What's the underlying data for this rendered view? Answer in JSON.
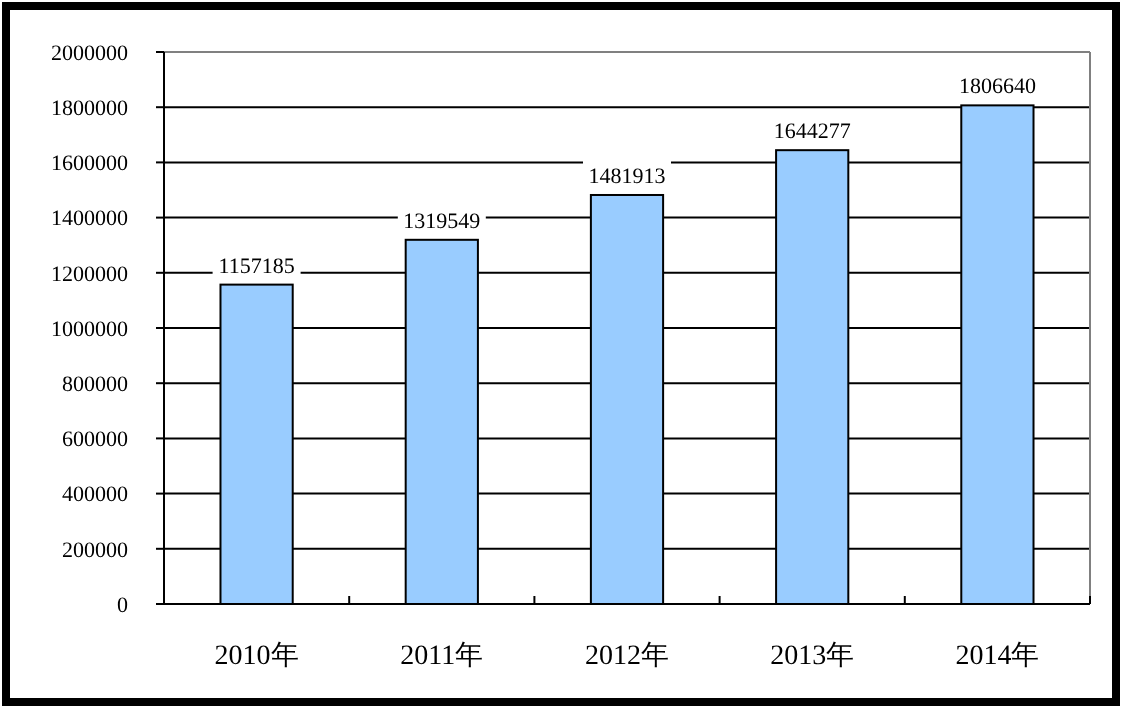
{
  "chart_data": {
    "type": "bar",
    "categories": [
      "2010年",
      "2011年",
      "2012年",
      "2013年",
      "2014年"
    ],
    "values": [
      1157185,
      1319549,
      1481913,
      1644277,
      1806640
    ],
    "color": "#99ccff",
    "ylim": [
      0,
      2000000
    ],
    "yticks": [
      0,
      200000,
      400000,
      600000,
      800000,
      1000000,
      1200000,
      1400000,
      1600000,
      1800000,
      2000000
    ],
    "grid": "y",
    "data_labels": true
  }
}
